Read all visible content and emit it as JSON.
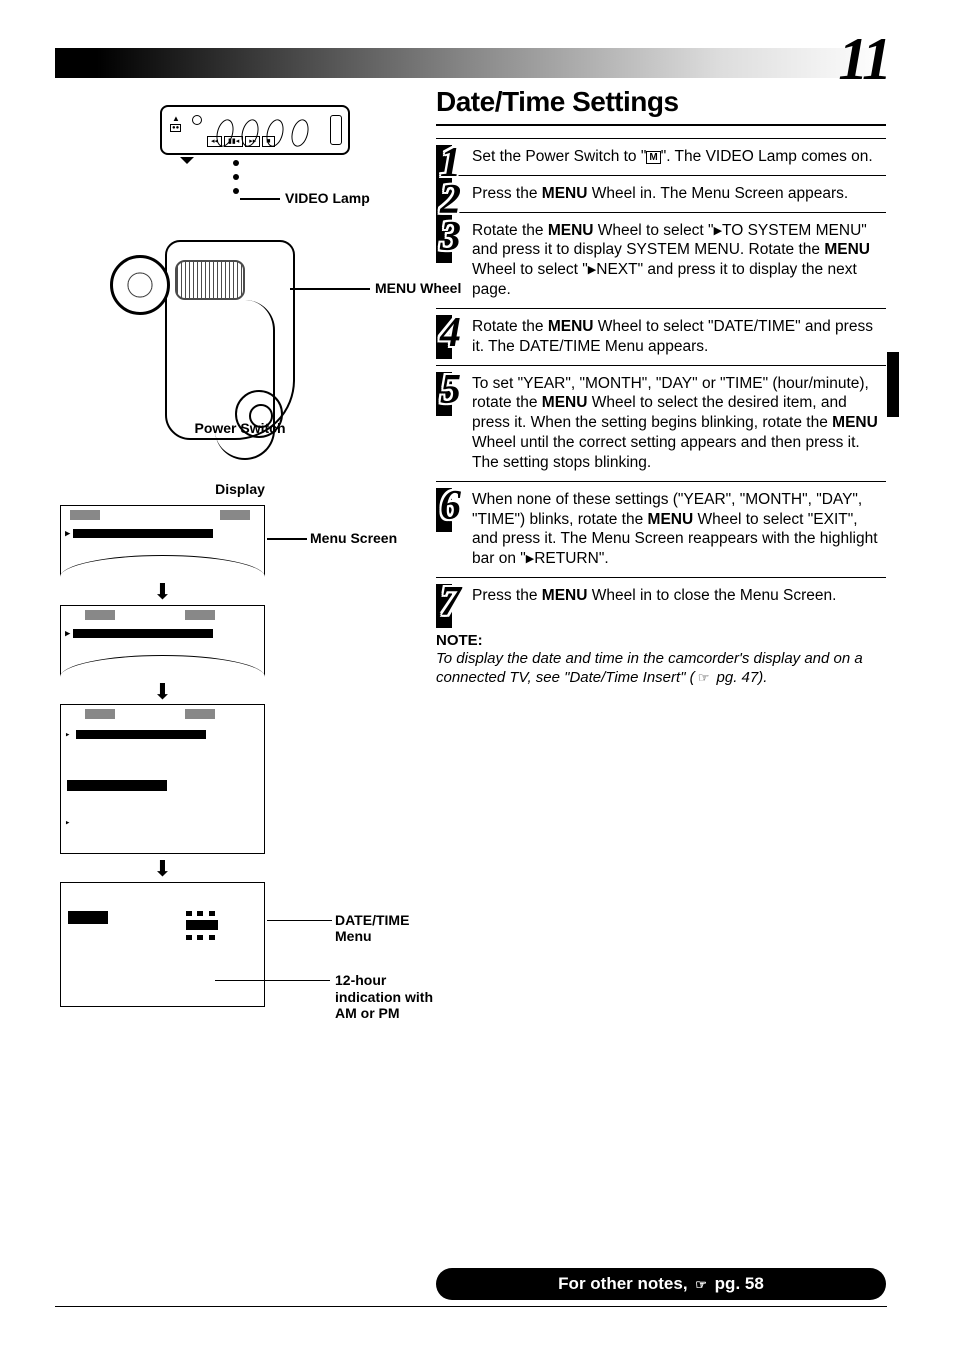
{
  "page_number": "11",
  "diagram": {
    "video_lamp_label": "VIDEO Lamp",
    "menu_wheel_label": "MENU Wheel",
    "power_switch_label": "Power Switch",
    "display_label": "Display",
    "menu_screen_label": "Menu Screen",
    "date_time_menu_label": "DATE/TIME Menu",
    "clock_label": "12-hour indication with AM or PM"
  },
  "heading": "Date/Time Settings",
  "steps": [
    {
      "n": "1",
      "html": "Set the Power Switch to \"<span class='m-icon'>M</span>\". The VIDEO Lamp comes on."
    },
    {
      "n": "2",
      "html": "Press the <b>MENU</b> Wheel in. The Menu Screen appears."
    },
    {
      "n": "3",
      "html": "Rotate the <b>MENU</b> Wheel to select \"<span class='tri'></span>TO SYSTEM MENU\" and press it to display SYSTEM MENU. Rotate the <b>MENU</b> Wheel to select \"<span class='tri'></span>NEXT\" and press it to display the next page."
    },
    {
      "n": "4",
      "html": "Rotate the <b>MENU</b> Wheel to select \"DATE/TIME\" and press it. The DATE/TIME Menu appears."
    },
    {
      "n": "5",
      "html": "To set \"YEAR\", \"MONTH\", \"DAY\" or \"TIME\" (hour/minute), rotate the <b>MENU</b> Wheel to select the desired item, and press it. When the setting begins blinking, rotate the <b>MENU</b> Wheel until the correct setting appears and then press it. The setting stops blinking."
    },
    {
      "n": "6",
      "html": "When none of these settings (\"YEAR\", \"MONTH\", \"DAY\", \"TIME\") blinks, rotate the <b>MENU</b> Wheel to select \"EXIT\", and press it. The Menu Screen reappears with the highlight bar on \"<span class='tri'></span>RETURN\"."
    },
    {
      "n": "7",
      "html": "Press the <b>MENU</b> Wheel in to close the Menu Screen."
    }
  ],
  "note_heading": "NOTE:",
  "note_text": "To display the date and time in the camcorder's display and on a connected TV, see \"Date/Time Insert\" (",
  "note_ref": " pg. 47).",
  "footer_pre": "For other notes, ",
  "footer_ref": " pg. 58"
}
